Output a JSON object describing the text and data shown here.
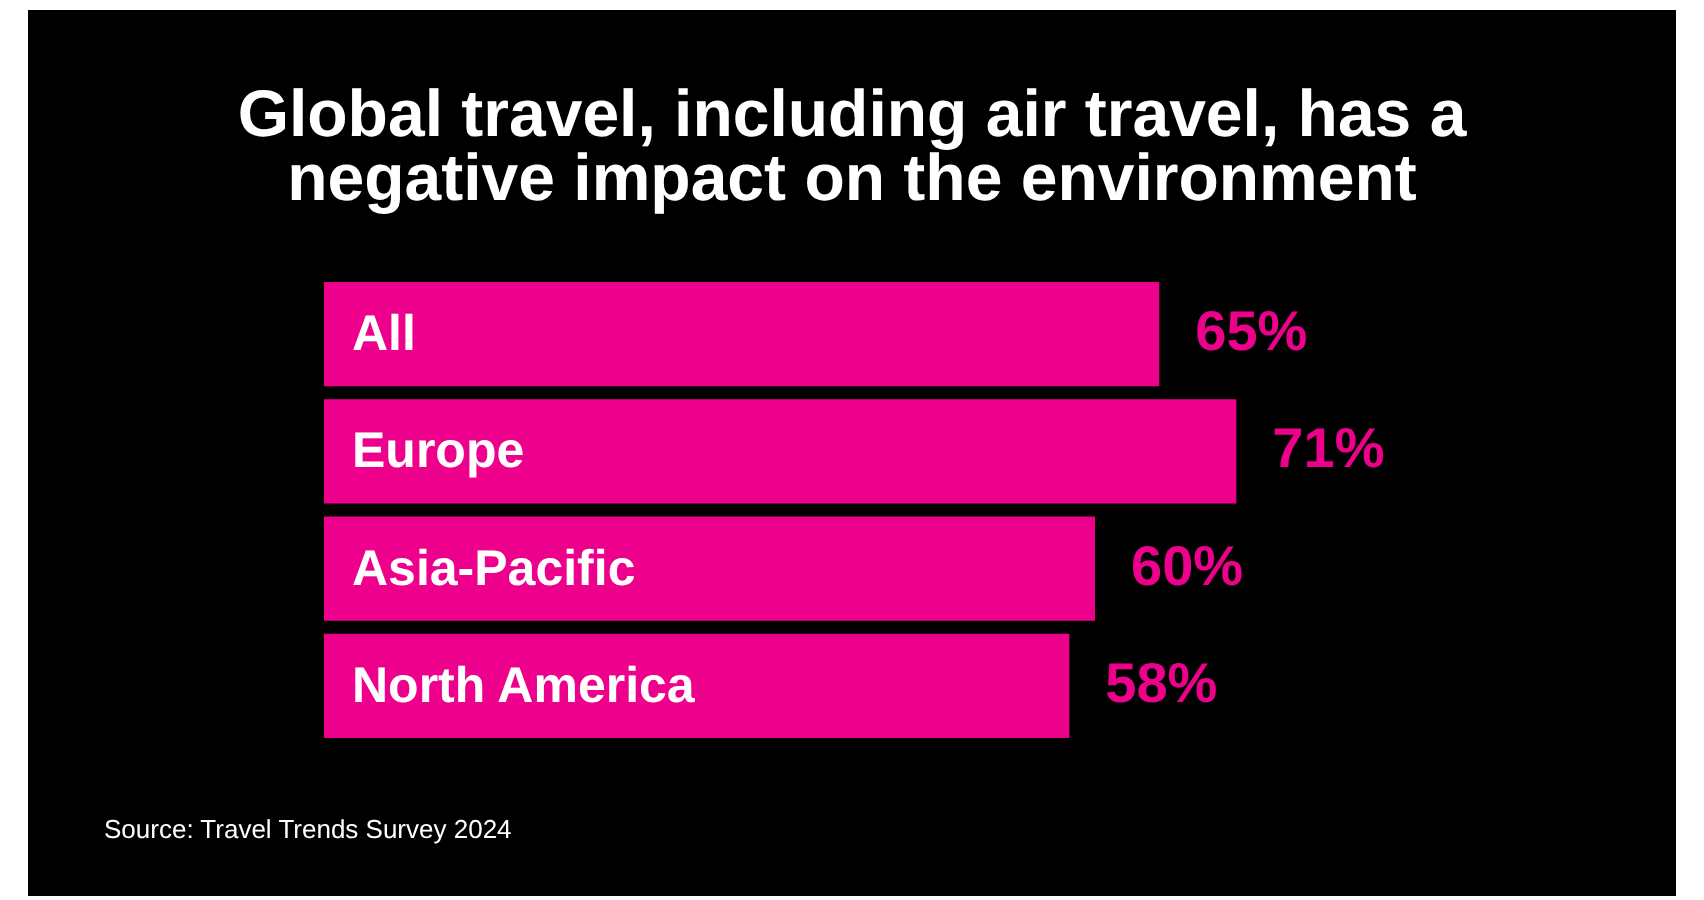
{
  "chart_data": {
    "type": "bar",
    "orientation": "horizontal",
    "title": "Global travel, including air travel, has a negative impact on the environment",
    "categories": [
      "All",
      "Europe",
      "Asia-Pacific",
      "North America"
    ],
    "values": [
      65,
      71,
      60,
      58
    ],
    "color": "#ec008c",
    "value_labels": [
      "65%",
      "71%",
      "60%",
      "58%"
    ],
    "annotations": [
      "Source: Travel Trends Survey 2024"
    ]
  }
}
